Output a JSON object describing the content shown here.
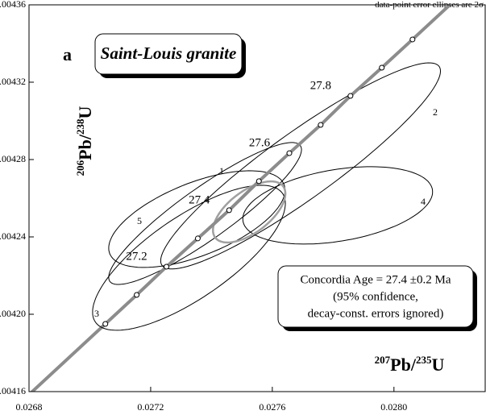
{
  "chart_data": {
    "type": "concordia",
    "title": "Saint-Louis granite",
    "panel_label": "a",
    "note": "data-point error ellipses are 2σ",
    "xlabel": [
      "207",
      "Pb/",
      "235",
      "U"
    ],
    "ylabel": [
      "206",
      "Pb/",
      "238",
      "U"
    ],
    "xlim": [
      0.0268,
      0.0283
    ],
    "ylim": [
      0.00416,
      0.00436
    ],
    "xticks": [
      0.0268,
      0.0272,
      0.0276,
      {
        "value": 0.028,
        "label": "0.0280"
      }
    ],
    "yticks": [
      0.00416,
      {
        "value": 0.0042,
        "label": "0.00420"
      },
      0.00424,
      0.00428,
      0.00432,
      0.00436
    ],
    "concordia": {
      "color": "#8c8c8c",
      "x": [
        0.027051,
        0.027154,
        0.027252,
        0.027355,
        0.027458,
        0.027556,
        0.027656,
        0.027759,
        0.027857,
        0.02796,
        0.028061
      ],
      "y": [
        0.004195,
        0.00421,
        0.0042246,
        0.0042392,
        0.0042538,
        0.0042688,
        0.0042833,
        0.0042979,
        0.0043129,
        0.0043275,
        0.0043421
      ],
      "labels": [
        null,
        null,
        "27.2",
        null,
        "27.4",
        null,
        "27.6",
        null,
        "27.8",
        null,
        null
      ]
    },
    "ellipses": [
      {
        "name": "1",
        "x": 0.027379,
        "y": 0.0042521,
        "sx": 0.000317,
        "sy": 3.67e-05,
        "rho": 0.9,
        "color": "#000000"
      },
      {
        "name": "2",
        "x": 0.027693,
        "y": 0.0042767,
        "sx": 0.00046,
        "sy": 5.33e-05,
        "rho": 0.92,
        "color": "#000000"
      },
      {
        "name": "3",
        "x": 0.027326,
        "y": 0.0042292,
        "sx": 0.000317,
        "sy": 3.75e-05,
        "rho": 0.75,
        "color": "#000000"
      },
      {
        "name": "4",
        "x": 0.027815,
        "y": 0.0042563,
        "sx": 0.000312,
        "sy": 2e-05,
        "rho": 0.35,
        "color": "#000000"
      },
      {
        "name": "5",
        "x": 0.027352,
        "y": 0.0042492,
        "sx": 0.00029,
        "sy": 2.5e-05,
        "rho": 0.6,
        "color": "#000000"
      }
    ],
    "age_ellipse": {
      "x": 0.027524,
      "y": 0.0042529,
      "sx": 0.000119,
      "sy": 1.58e-05,
      "rho": 0.6,
      "color": "#a0a0a0"
    },
    "result": [
      "Concordia Age = 27.4 ±0.2 Ma",
      "(95% confidence,",
      "decay-const. errors ignored)"
    ]
  }
}
